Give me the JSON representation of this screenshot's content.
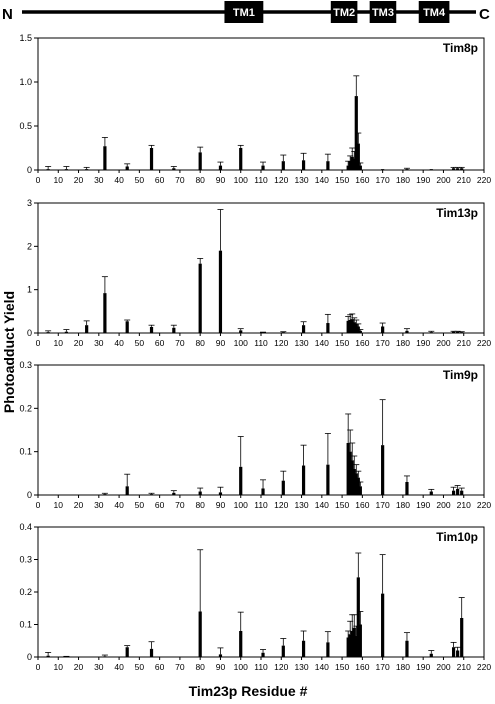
{
  "topology": {
    "n_label": "N",
    "c_label": "C",
    "segments": [
      {
        "label": "TM1",
        "start": 99,
        "end": 118
      },
      {
        "label": "TM2",
        "start": 151,
        "end": 164
      },
      {
        "label": "TM3",
        "start": 170,
        "end": 183
      },
      {
        "label": "TM4",
        "start": 194,
        "end": 209
      }
    ],
    "residue_range": [
      0,
      222
    ]
  },
  "ylabel": "Photoadduct Yield",
  "xlabel": "Tim23p Residue #",
  "chart_data": [
    {
      "type": "bar",
      "title": "Tim8p",
      "xlim": [
        0,
        220
      ],
      "ylim": [
        0,
        1.5
      ],
      "yticks": [
        0,
        0.5,
        1.0,
        1.5
      ],
      "ytick_labels": [
        "0",
        "0.5",
        "1.0",
        "1.5"
      ],
      "xticks": [
        0,
        10,
        20,
        30,
        40,
        50,
        60,
        70,
        80,
        90,
        100,
        110,
        120,
        130,
        140,
        150,
        160,
        170,
        180,
        190,
        200,
        210,
        220
      ],
      "x": [
        5,
        14,
        24,
        33,
        44,
        56,
        67,
        80,
        90,
        100,
        111,
        121,
        131,
        143,
        153,
        154,
        155,
        156,
        157,
        158,
        159,
        170,
        182,
        194,
        205,
        207,
        209
      ],
      "values": [
        0.01,
        0.01,
        0.01,
        0.27,
        0.04,
        0.25,
        0.02,
        0.2,
        0.05,
        0.25,
        0.05,
        0.1,
        0.11,
        0.1,
        0.05,
        0.1,
        0.15,
        0.13,
        0.84,
        0.3,
        0.05,
        0.01,
        0.01,
        0.01,
        0.02,
        0.02,
        0.02
      ],
      "errors": [
        0.03,
        0.03,
        0.02,
        0.1,
        0.03,
        0.03,
        0.02,
        0.06,
        0.04,
        0.03,
        0.04,
        0.07,
        0.08,
        0.08,
        0.05,
        0.06,
        0.1,
        0.08,
        0.23,
        0.12,
        0.03,
        0.0,
        0.01,
        0.0,
        0.01,
        0.01,
        0.01
      ]
    },
    {
      "type": "bar",
      "title": "Tim13p",
      "xlim": [
        0,
        220
      ],
      "ylim": [
        0,
        3
      ],
      "yticks": [
        0,
        1,
        2,
        3
      ],
      "ytick_labels": [
        "0",
        "1",
        "2",
        "3"
      ],
      "xticks": [
        0,
        10,
        20,
        30,
        40,
        50,
        60,
        70,
        80,
        90,
        100,
        110,
        120,
        130,
        140,
        150,
        160,
        170,
        180,
        190,
        200,
        210,
        220
      ],
      "x": [
        5,
        14,
        24,
        33,
        44,
        56,
        67,
        80,
        90,
        100,
        111,
        121,
        131,
        143,
        153,
        154,
        155,
        156,
        157,
        158,
        159,
        170,
        182,
        194,
        205,
        207,
        209
      ],
      "values": [
        0.02,
        0.03,
        0.18,
        0.92,
        0.27,
        0.14,
        0.12,
        1.6,
        1.9,
        0.06,
        0.01,
        0.02,
        0.18,
        0.23,
        0.28,
        0.3,
        0.32,
        0.25,
        0.22,
        0.15,
        0.05,
        0.15,
        0.05,
        0.02,
        0.03,
        0.03,
        0.02
      ],
      "errors": [
        0.03,
        0.05,
        0.1,
        0.38,
        0.03,
        0.04,
        0.06,
        0.12,
        0.95,
        0.04,
        0.01,
        0.01,
        0.08,
        0.2,
        0.1,
        0.12,
        0.12,
        0.1,
        0.08,
        0.06,
        0.03,
        0.08,
        0.05,
        0.02,
        0.01,
        0.01,
        0.01
      ]
    },
    {
      "type": "bar",
      "title": "Tim9p",
      "xlim": [
        0,
        220
      ],
      "ylim": [
        0,
        0.3
      ],
      "yticks": [
        0,
        0.1,
        0.2,
        0.3
      ],
      "ytick_labels": [
        "0",
        "0.1",
        "0.2",
        "0.3"
      ],
      "xticks": [
        0,
        10,
        20,
        30,
        40,
        50,
        60,
        70,
        80,
        90,
        100,
        110,
        120,
        130,
        140,
        150,
        160,
        170,
        180,
        190,
        200,
        210,
        220
      ],
      "x": [
        5,
        14,
        24,
        33,
        44,
        56,
        67,
        80,
        90,
        100,
        111,
        121,
        131,
        143,
        153,
        154,
        155,
        156,
        157,
        158,
        159,
        170,
        182,
        194,
        205,
        207,
        209
      ],
      "values": [
        0.0,
        0.0,
        0.0,
        0.002,
        0.02,
        0.002,
        0.005,
        0.008,
        0.006,
        0.065,
        0.015,
        0.033,
        0.068,
        0.07,
        0.12,
        0.1,
        0.08,
        0.06,
        0.05,
        0.04,
        0.02,
        0.115,
        0.03,
        0.008,
        0.01,
        0.014,
        0.01
      ],
      "errors": [
        0.0,
        0.0,
        0.0,
        0.002,
        0.028,
        0.002,
        0.005,
        0.008,
        0.012,
        0.07,
        0.02,
        0.022,
        0.047,
        0.072,
        0.067,
        0.05,
        0.04,
        0.03,
        0.02,
        0.015,
        0.01,
        0.105,
        0.014,
        0.005,
        0.008,
        0.008,
        0.006
      ]
    },
    {
      "type": "bar",
      "title": "Tim10p",
      "xlim": [
        0,
        220
      ],
      "ylim": [
        0,
        0.4
      ],
      "yticks": [
        0,
        0.1,
        0.2,
        0.3,
        0.4
      ],
      "ytick_labels": [
        "0",
        "0.1",
        "0.2",
        "0.3",
        "0.4"
      ],
      "xticks": [
        0,
        10,
        20,
        30,
        40,
        50,
        60,
        70,
        80,
        90,
        100,
        110,
        120,
        130,
        140,
        150,
        160,
        170,
        180,
        190,
        200,
        210,
        220
      ],
      "x": [
        5,
        14,
        24,
        33,
        44,
        56,
        67,
        80,
        90,
        100,
        111,
        121,
        131,
        143,
        153,
        154,
        155,
        156,
        157,
        158,
        159,
        170,
        182,
        194,
        205,
        207,
        209
      ],
      "values": [
        0.004,
        0.0,
        0.0,
        0.002,
        0.03,
        0.025,
        0.0,
        0.14,
        0.008,
        0.08,
        0.013,
        0.035,
        0.05,
        0.045,
        0.06,
        0.07,
        0.08,
        0.09,
        0.065,
        0.245,
        0.1,
        0.195,
        0.05,
        0.01,
        0.03,
        0.02,
        0.12
      ],
      "errors": [
        0.01,
        0.002,
        0.0,
        0.004,
        0.005,
        0.022,
        0.0,
        0.19,
        0.02,
        0.058,
        0.01,
        0.022,
        0.03,
        0.033,
        0.02,
        0.04,
        0.05,
        0.04,
        0.03,
        0.075,
        0.04,
        0.12,
        0.025,
        0.01,
        0.015,
        0.01,
        0.063
      ]
    }
  ]
}
